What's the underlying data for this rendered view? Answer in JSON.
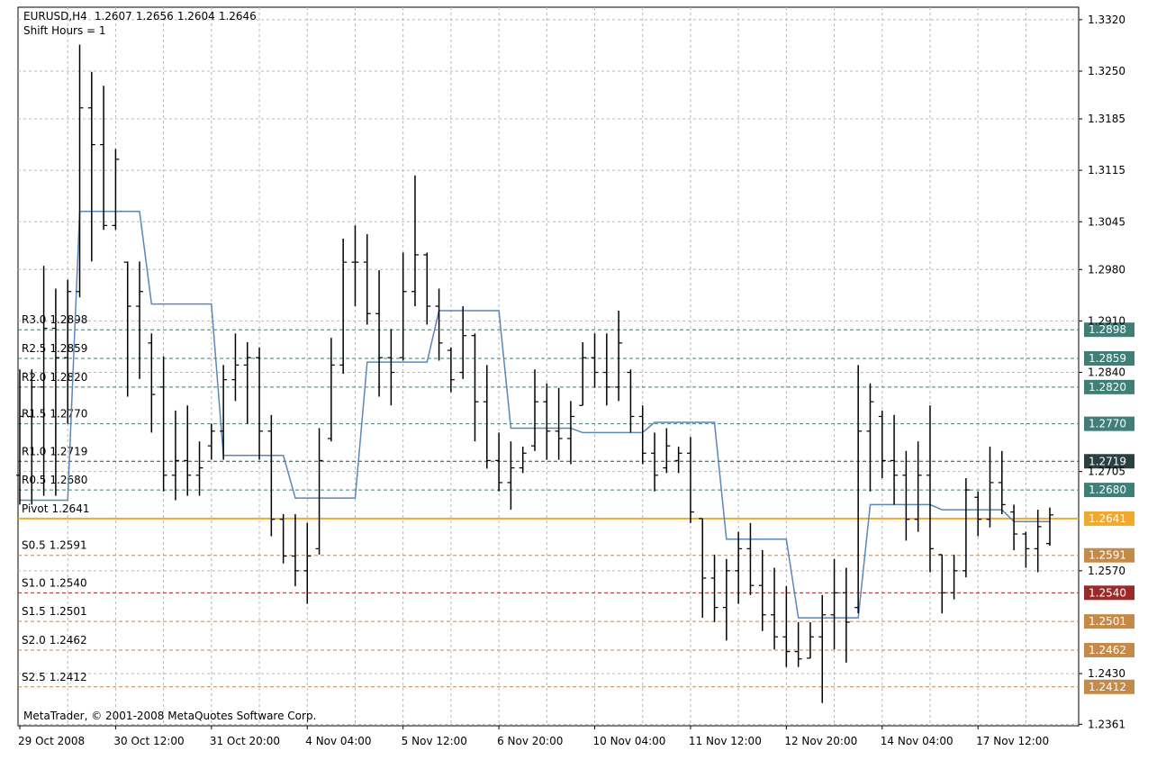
{
  "chart_data": {
    "type": "ohlc",
    "symbol": "EURUSD,H4",
    "subtitle": "Shift Hours = 1",
    "footer": "MetaTrader, © 2001-2008 MetaQuotes Software Corp.",
    "bar_color": "#000000",
    "grid": true,
    "ylim": [
      1.2359,
      1.3337
    ],
    "yticks": [
      {
        "value": 1.332,
        "label": "1.3320"
      },
      {
        "value": 1.325,
        "label": "1.3250"
      },
      {
        "value": 1.3185,
        "label": "1.3185"
      },
      {
        "value": 1.3115,
        "label": "1.3115"
      },
      {
        "value": 1.3045,
        "label": "1.3045"
      },
      {
        "value": 1.298,
        "label": "1.2980"
      },
      {
        "value": 1.291,
        "label": "1.2910"
      },
      {
        "value": 1.284,
        "label": "1.2840"
      },
      {
        "value": 1.2705,
        "label": "1.2705"
      },
      {
        "value": 1.257,
        "label": "1.2570"
      },
      {
        "value": 1.243,
        "label": "1.2430"
      },
      {
        "value": 1.2361,
        "label": "1.2361"
      }
    ],
    "categories": [
      "29 Oct 2008",
      null,
      null,
      null,
      null,
      null,
      null,
      null,
      "30 Oct 12:00",
      null,
      null,
      null,
      null,
      null,
      null,
      null,
      "31 Oct 20:00",
      null,
      null,
      null,
      null,
      null,
      null,
      null,
      "4 Nov 04:00",
      null,
      null,
      null,
      null,
      null,
      null,
      null,
      "5 Nov 12:00",
      null,
      null,
      null,
      null,
      null,
      null,
      null,
      "6 Nov 20:00",
      null,
      null,
      null,
      null,
      null,
      null,
      null,
      "10 Nov 04:00",
      null,
      null,
      null,
      null,
      null,
      null,
      null,
      "11 Nov 12:00",
      null,
      null,
      null,
      null,
      null,
      null,
      null,
      "12 Nov 20:00",
      null,
      null,
      null,
      null,
      null,
      null,
      null,
      "14 Nov 04:00",
      null,
      null,
      null,
      null,
      null,
      null,
      null,
      "17 Nov 12:00",
      null,
      null,
      null,
      null,
      null,
      null
    ],
    "open": [
      1.27,
      1.278,
      1.282,
      1.29,
      1.286,
      1.295,
      1.32,
      1.315,
      1.304,
      1.299,
      1.293,
      1.288,
      1.282,
      1.27,
      1.272,
      1.27,
      1.274,
      1.276,
      1.283,
      1.285,
      1.286,
      1.276,
      1.264,
      1.259,
      1.257,
      1.26,
      1.275,
      1.285,
      1.299,
      1.299,
      1.292,
      1.286,
      1.286,
      1.295,
      1.3,
      1.293,
      1.287,
      1.284,
      1.289,
      1.28,
      1.272,
      1.269,
      1.271,
      1.274,
      1.28,
      1.276,
      1.275,
      1.2795,
      1.286,
      1.284,
      1.282,
      1.284,
      1.278,
      1.273,
      1.271,
      1.272,
      1.273,
      1.2641,
      1.256,
      1.252,
      1.257,
      1.26,
      1.255,
      1.251,
      1.248,
      1.246,
      1.2451,
      1.248,
      1.251,
      1.254,
      1.252,
      1.276,
      1.278,
      1.272,
      1.27,
      1.264,
      1.27,
      1.2592,
      1.254,
      1.257,
      1.267,
      1.264,
      1.269,
      1.265,
      1.262,
      1.26,
      1.2607
    ],
    "high": [
      1.2844,
      1.2844,
      1.2985,
      1.2954,
      1.2966,
      1.3286,
      1.3249,
      1.323,
      1.3144,
      1.2991,
      1.2991,
      1.2893,
      1.2862,
      1.2788,
      1.2795,
      1.2746,
      1.277,
      1.285,
      1.2893,
      1.2881,
      1.2874,
      1.2782,
      1.2647,
      1.2647,
      1.2635,
      1.2764,
      1.2887,
      1.3022,
      1.304,
      1.3028,
      1.2979,
      1.2899,
      1.3003,
      1.3108,
      1.3003,
      1.2954,
      1.2874,
      1.293,
      1.2893,
      1.285,
      1.2758,
      1.2746,
      1.2739,
      1.2844,
      1.2825,
      1.2819,
      1.2801,
      1.2881,
      1.2893,
      1.2893,
      1.2924,
      1.2844,
      1.2795,
      1.2758,
      1.2764,
      1.2739,
      1.2752,
      1.2641,
      1.2592,
      1.2586,
      1.2623,
      1.2635,
      1.2598,
      1.2574,
      1.2549,
      1.25,
      1.25,
      1.2537,
      1.2586,
      1.2574,
      1.285,
      1.2825,
      1.2788,
      1.2782,
      1.2733,
      1.2746,
      1.2795,
      1.2592,
      1.2592,
      1.2696,
      1.2678,
      1.2739,
      1.2733,
      1.266,
      1.2623,
      1.2653,
      1.2656
    ],
    "low": [
      1.266,
      1.266,
      1.2672,
      1.2672,
      1.277,
      1.2942,
      1.2991,
      1.3034,
      1.3034,
      1.2807,
      1.2831,
      1.2758,
      1.2678,
      1.2666,
      1.2672,
      1.2672,
      1.2721,
      1.2721,
      1.2801,
      1.277,
      1.2721,
      1.2617,
      1.258,
      1.2549,
      1.2525,
      1.2592,
      1.2746,
      1.2838,
      1.293,
      1.2905,
      1.2807,
      1.2795,
      1.2856,
      1.293,
      1.2905,
      1.2856,
      1.2813,
      1.2831,
      1.2746,
      1.2709,
      1.2678,
      1.2653,
      1.2703,
      1.2733,
      1.2721,
      1.2721,
      1.2715,
      1.2795,
      1.2819,
      1.2795,
      1.2801,
      1.2758,
      1.2715,
      1.2678,
      1.2703,
      1.2703,
      1.2635,
      1.2506,
      1.25,
      1.2475,
      1.2525,
      1.2537,
      1.2488,
      1.2463,
      1.2439,
      1.2439,
      1.2451,
      1.239,
      1.2463,
      1.2445,
      1.2512,
      1.2678,
      1.2696,
      1.266,
      1.2611,
      1.2623,
      1.2568,
      1.2512,
      1.2531,
      1.2561,
      1.2617,
      1.2629,
      1.2647,
      1.2598,
      1.2574,
      1.2568,
      1.2604
    ],
    "close": [
      1.278,
      1.282,
      1.29,
      1.286,
      1.295,
      1.32,
      1.315,
      1.304,
      1.313,
      1.293,
      1.295,
      1.281,
      1.27,
      1.272,
      1.27,
      1.271,
      1.276,
      1.283,
      1.285,
      1.286,
      1.276,
      1.264,
      1.259,
      1.257,
      1.259,
      1.272,
      1.285,
      1.299,
      1.299,
      1.292,
      1.286,
      1.284,
      1.295,
      1.3,
      1.293,
      1.288,
      1.283,
      1.289,
      1.28,
      1.272,
      1.269,
      1.271,
      1.273,
      1.28,
      1.276,
      1.275,
      1.278,
      1.286,
      1.284,
      1.282,
      1.288,
      1.278,
      1.273,
      1.27,
      1.274,
      1.273,
      1.265,
      1.256,
      1.252,
      1.257,
      1.26,
      1.255,
      1.251,
      1.248,
      1.246,
      1.245,
      1.248,
      1.251,
      1.254,
      1.25,
      1.276,
      1.28,
      1.272,
      1.27,
      1.264,
      1.27,
      1.26,
      1.254,
      1.257,
      1.268,
      1.264,
      1.269,
      1.266,
      1.262,
      1.26,
      1.263,
      1.2646
    ],
    "pivot_line": {
      "color": "#5a86b8",
      "values": [
        1.2666,
        1.2666,
        1.2666,
        1.2666,
        1.2666,
        1.3059,
        1.3059,
        1.3059,
        1.3059,
        1.3059,
        1.3059,
        1.2933,
        1.2933,
        1.2933,
        1.2933,
        1.2933,
        1.2933,
        1.2727,
        1.2727,
        1.2727,
        1.2727,
        1.2727,
        1.2727,
        1.2669,
        1.2669,
        1.2669,
        1.2669,
        1.2669,
        1.2669,
        1.2854,
        1.2854,
        1.2854,
        1.2854,
        1.2854,
        1.2854,
        1.2924,
        1.2924,
        1.2924,
        1.2924,
        1.2924,
        1.2924,
        1.2764,
        1.2764,
        1.2764,
        1.2764,
        1.2764,
        1.2764,
        1.2758,
        1.2758,
        1.2758,
        1.2758,
        1.2758,
        1.2758,
        1.2772,
        1.2772,
        1.2772,
        1.2772,
        1.2772,
        1.2772,
        1.2613,
        1.2613,
        1.2613,
        1.2613,
        1.2613,
        1.2613,
        1.2506,
        1.2506,
        1.2506,
        1.2506,
        1.2506,
        1.2506,
        1.266,
        1.266,
        1.266,
        1.266,
        1.266,
        1.266,
        1.2653,
        1.2653,
        1.2653,
        1.2653,
        1.2653,
        1.2653,
        1.2637,
        1.2637,
        1.2637,
        1.2637
      ]
    },
    "levels": [
      {
        "name": "R3.0",
        "value": 1.2898,
        "label": "1.2898",
        "color": "#3f7f78"
      },
      {
        "name": "R2.5",
        "value": 1.2859,
        "label": "1.2859",
        "color": "#3f7f78"
      },
      {
        "name": "R2.0",
        "value": 1.282,
        "label": "1.2820",
        "color": "#3f7f78"
      },
      {
        "name": "R1.5",
        "value": 1.277,
        "label": "1.2770",
        "color": "#3f7f78"
      },
      {
        "name": "R1.0",
        "value": 1.2719,
        "label": "1.2719",
        "color": "#2b3f3f"
      },
      {
        "name": "R0.5",
        "value": 1.268,
        "label": "1.2680",
        "color": "#3f7f78"
      },
      {
        "name": "Pivot",
        "value": 1.2641,
        "label": "1.2641",
        "color": "#f0a830"
      },
      {
        "name": "S0.5",
        "value": 1.2591,
        "label": "1.2591",
        "color": "#c48a4a"
      },
      {
        "name": "S1.0",
        "value": 1.254,
        "label": "1.2540",
        "color": "#9a2a2a"
      },
      {
        "name": "S1.5",
        "value": 1.2501,
        "label": "1.2501",
        "color": "#c48a4a"
      },
      {
        "name": "S2.0",
        "value": 1.2462,
        "label": "1.2462",
        "color": "#c48a4a"
      },
      {
        "name": "S2.5",
        "value": 1.2412,
        "label": "1.2412",
        "color": "#c48a4a"
      }
    ]
  }
}
